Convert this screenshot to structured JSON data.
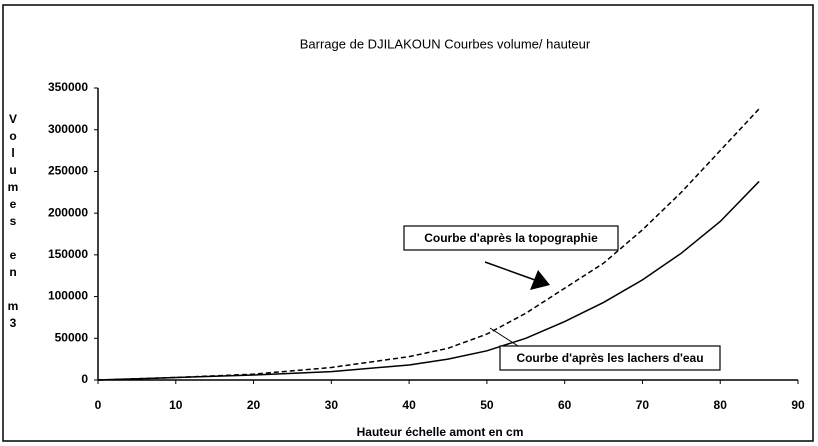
{
  "chart_data": {
    "type": "line",
    "title": "Barrage de DJILAKOUN   Courbes volume/ hauteur",
    "x_label": "Hauteur échelle amont en cm",
    "y_label": "Volumes en m3",
    "x": [
      0,
      10,
      20,
      30,
      40,
      45,
      50,
      55,
      60,
      65,
      70,
      75,
      80,
      85
    ],
    "series": [
      {
        "name": "Courbe d'après la topographie",
        "color": "#000000",
        "style": "dashed",
        "values": [
          0,
          3000,
          7000,
          15000,
          28000,
          38000,
          55000,
          80000,
          110000,
          140000,
          180000,
          225000,
          275000,
          325000
        ]
      },
      {
        "name": "Courbe d'après les lachers d'eau",
        "color": "#000000",
        "style": "solid",
        "values": [
          0,
          3000,
          6000,
          10000,
          18000,
          25000,
          35000,
          50000,
          70000,
          93000,
          120000,
          152000,
          190000,
          238000
        ]
      }
    ],
    "xlim": [
      0,
      90
    ],
    "xticks": [
      0,
      10,
      20,
      30,
      40,
      50,
      60,
      70,
      80,
      90
    ],
    "ylim": [
      0,
      350000
    ],
    "yticks": [
      0,
      50000,
      100000,
      150000,
      200000,
      250000,
      300000,
      350000
    ],
    "grid": false
  }
}
